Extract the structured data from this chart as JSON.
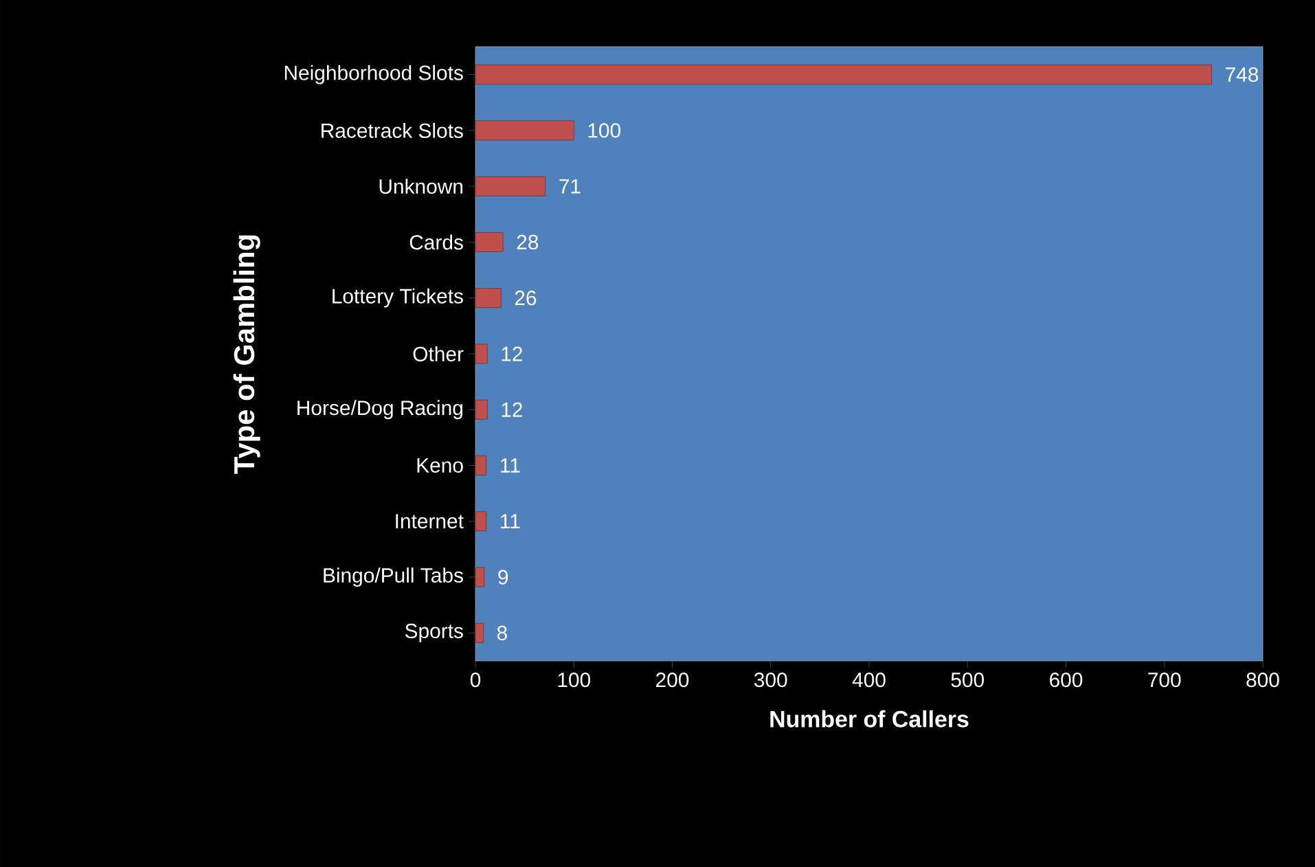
{
  "chart_data": {
    "type": "bar",
    "orientation": "horizontal",
    "categories": [
      "Neighborhood Slots",
      "Racetrack Slots",
      "Unknown",
      "Cards",
      "Lottery Tickets",
      "Other",
      "Horse/Dog Racing",
      "Keno",
      "Internet",
      "Bingo/Pull Tabs",
      "Sports"
    ],
    "values": [
      748,
      100,
      71,
      28,
      26,
      12,
      12,
      11,
      11,
      9,
      8
    ],
    "color": "#c0504d",
    "xlim": [
      0,
      800
    ],
    "xticks": [
      0,
      100,
      200,
      300,
      400,
      500,
      600,
      700,
      800
    ],
    "xlabel": "Number of Callers",
    "ylabel": "Type of Gambling",
    "data_labels": true
  }
}
